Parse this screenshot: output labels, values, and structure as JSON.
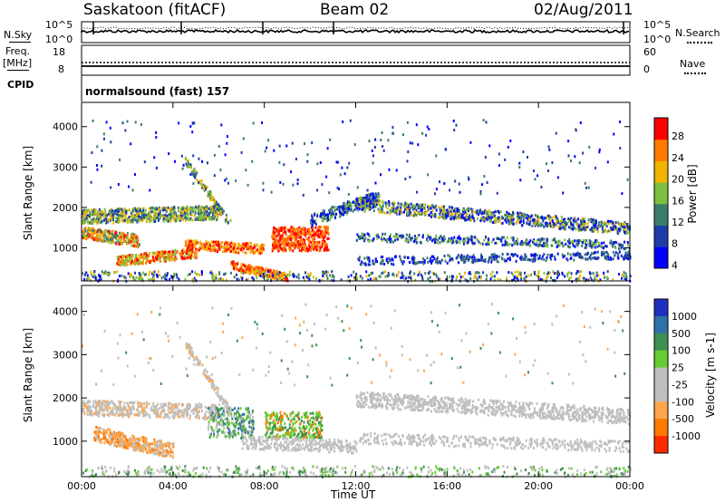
{
  "header": {
    "station": "Saskatoon (fitACF)",
    "beam": "Beam 02",
    "date": "02/Aug/2011"
  },
  "top_panel": {
    "left_label": "N.Sky",
    "right_label": "N.Search",
    "left_ticks": [
      "10^5",
      "10^0"
    ],
    "right_ticks": [
      "10^5",
      "10^0"
    ]
  },
  "freq_panel": {
    "left_label_1": "Freq.",
    "left_label_2": "[MHz]",
    "right_label": "Nave",
    "left_ticks": [
      "18",
      "8"
    ],
    "right_ticks": [
      "60",
      "0"
    ]
  },
  "cpid_panel": {
    "label": "CPID",
    "text": "normalsound (fast) 157"
  },
  "chart_data": [
    {
      "type": "heatmap",
      "title": "",
      "ylabel": "Slant Range [km]",
      "xlabel": "",
      "y_ticks": [
        "4000",
        "3000",
        "2000",
        "1000"
      ],
      "ylim": [
        180,
        4600
      ],
      "colorbar_label": "Power [dB]",
      "colorbar_ticks": [
        "28",
        "24",
        "20",
        "16",
        "12",
        "8",
        "4"
      ],
      "colorbar_colors": [
        "#0000ff",
        "#1e3ca8",
        "#3a7d6a",
        "#7fbf3f",
        "#f0b400",
        "#ff7a00",
        "#ff0000"
      ]
    },
    {
      "type": "heatmap",
      "title": "",
      "ylabel": "Slant Range [km]",
      "xlabel": "Time UT",
      "x_ticks": [
        "00:00",
        "04:00",
        "08:00",
        "12:00",
        "16:00",
        "20:00",
        "00:00"
      ],
      "y_ticks": [
        "4000",
        "3000",
        "2000",
        "1000"
      ],
      "ylim": [
        180,
        4600
      ],
      "colorbar_label": "Velocity [m s-1]",
      "colorbar_ticks": [
        "1000",
        "500",
        "100",
        "25",
        "-25",
        "-100",
        "-500",
        "-1000"
      ],
      "colorbar_colors": [
        "#1f2fbf",
        "#2d72a8",
        "#3f8f52",
        "#66cc33",
        "#bfbfbf",
        "#bfbfbf",
        "#ffa64d",
        "#ff7a00",
        "#ff2a00"
      ]
    }
  ]
}
